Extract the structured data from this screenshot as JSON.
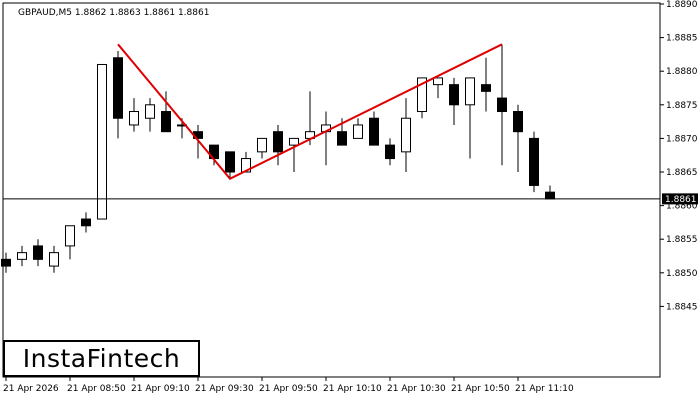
{
  "chart_data": {
    "type": "candlestick",
    "title": "GBPAUD,M5  1.8862 1.8863 1.8861 1.8861",
    "ylim": [
      1.884,
      1.889
    ],
    "y_ticks": [
      "1.8890",
      "1.8885",
      "1.8880",
      "1.8875",
      "1.8870",
      "1.8865",
      "1.8860",
      "1.8855",
      "1.8850",
      "1.8845"
    ],
    "x_tick_labels": [
      {
        "index": 0,
        "label": "21 Apr 2026"
      },
      {
        "index": 4,
        "label": "21 Apr 08:50"
      },
      {
        "index": 8,
        "label": "21 Apr 09:10"
      },
      {
        "index": 12,
        "label": "21 Apr 09:30"
      },
      {
        "index": 16,
        "label": "21 Apr 09:50"
      },
      {
        "index": 20,
        "label": "21 Apr 10:10"
      },
      {
        "index": 24,
        "label": "21 Apr 10:30"
      },
      {
        "index": 28,
        "label": "21 Apr 10:50"
      },
      {
        "index": 32,
        "label": "21 Apr 11:10"
      }
    ],
    "current_price": 1.8861,
    "current_price_label": "1.8861",
    "candles": [
      {
        "o": 1.8852,
        "h": 1.8853,
        "l": 1.885,
        "c": 1.8851
      },
      {
        "o": 1.8852,
        "h": 1.8854,
        "l": 1.8851,
        "c": 1.8853
      },
      {
        "o": 1.8854,
        "h": 1.8855,
        "l": 1.8851,
        "c": 1.8852
      },
      {
        "o": 1.8851,
        "h": 1.8854,
        "l": 1.885,
        "c": 1.8853
      },
      {
        "o": 1.8854,
        "h": 1.8857,
        "l": 1.8852,
        "c": 1.8857
      },
      {
        "o": 1.8858,
        "h": 1.8859,
        "l": 1.8856,
        "c": 1.8857
      },
      {
        "o": 1.8858,
        "h": 1.8881,
        "l": 1.8858,
        "c": 1.8881
      },
      {
        "o": 1.8882,
        "h": 1.8883,
        "l": 1.887,
        "c": 1.8873
      },
      {
        "o": 1.8872,
        "h": 1.8876,
        "l": 1.8871,
        "c": 1.8874
      },
      {
        "o": 1.8873,
        "h": 1.8876,
        "l": 1.8871,
        "c": 1.8875
      },
      {
        "o": 1.8874,
        "h": 1.8877,
        "l": 1.8871,
        "c": 1.8871
      },
      {
        "o": 1.8872,
        "h": 1.8873,
        "l": 1.887,
        "c": 1.8872
      },
      {
        "o": 1.8871,
        "h": 1.8872,
        "l": 1.8867,
        "c": 1.887
      },
      {
        "o": 1.8869,
        "h": 1.8869,
        "l": 1.8866,
        "c": 1.8867
      },
      {
        "o": 1.8868,
        "h": 1.8868,
        "l": 1.8864,
        "c": 1.8865
      },
      {
        "o": 1.8865,
        "h": 1.8868,
        "l": 1.8865,
        "c": 1.8867
      },
      {
        "o": 1.8868,
        "h": 1.887,
        "l": 1.8867,
        "c": 1.887
      },
      {
        "o": 1.8871,
        "h": 1.8872,
        "l": 1.8866,
        "c": 1.8868
      },
      {
        "o": 1.8869,
        "h": 1.887,
        "l": 1.8865,
        "c": 1.887
      },
      {
        "o": 1.887,
        "h": 1.8877,
        "l": 1.8869,
        "c": 1.8871
      },
      {
        "o": 1.8871,
        "h": 1.8874,
        "l": 1.8866,
        "c": 1.8872
      },
      {
        "o": 1.8871,
        "h": 1.8873,
        "l": 1.8869,
        "c": 1.8869
      },
      {
        "o": 1.887,
        "h": 1.8873,
        "l": 1.887,
        "c": 1.8872
      },
      {
        "o": 1.8873,
        "h": 1.8874,
        "l": 1.8869,
        "c": 1.8869
      },
      {
        "o": 1.8869,
        "h": 1.887,
        "l": 1.8866,
        "c": 1.8867
      },
      {
        "o": 1.8868,
        "h": 1.8876,
        "l": 1.8865,
        "c": 1.8873
      },
      {
        "o": 1.8874,
        "h": 1.8879,
        "l": 1.8873,
        "c": 1.8879
      },
      {
        "o": 1.8878,
        "h": 1.8879,
        "l": 1.8876,
        "c": 1.8879
      },
      {
        "o": 1.8878,
        "h": 1.8879,
        "l": 1.8872,
        "c": 1.8875
      },
      {
        "o": 1.8875,
        "h": 1.8879,
        "l": 1.8867,
        "c": 1.8879
      },
      {
        "o": 1.8878,
        "h": 1.8882,
        "l": 1.8874,
        "c": 1.8877
      },
      {
        "o": 1.8876,
        "h": 1.8884,
        "l": 1.8866,
        "c": 1.8874
      },
      {
        "o": 1.8874,
        "h": 1.8875,
        "l": 1.8865,
        "c": 1.8871
      },
      {
        "o": 1.887,
        "h": 1.8871,
        "l": 1.8862,
        "c": 1.8863
      },
      {
        "o": 1.8862,
        "h": 1.8863,
        "l": 1.8861,
        "c": 1.8861
      }
    ],
    "pattern_line": [
      {
        "index": 7,
        "price": 1.8884
      },
      {
        "index": 14,
        "price": 1.8864
      },
      {
        "index": 31,
        "price": 1.8884
      }
    ],
    "colors": {
      "bull_body": "#ffffff",
      "bear_body": "#000000",
      "candle_outline": "#000000",
      "pattern_line": "#e00000",
      "axis": "#000000",
      "price_label_bg": "#000000",
      "price_label_text": "#ffffff"
    }
  },
  "logo": {
    "text": "InstaFintech"
  }
}
